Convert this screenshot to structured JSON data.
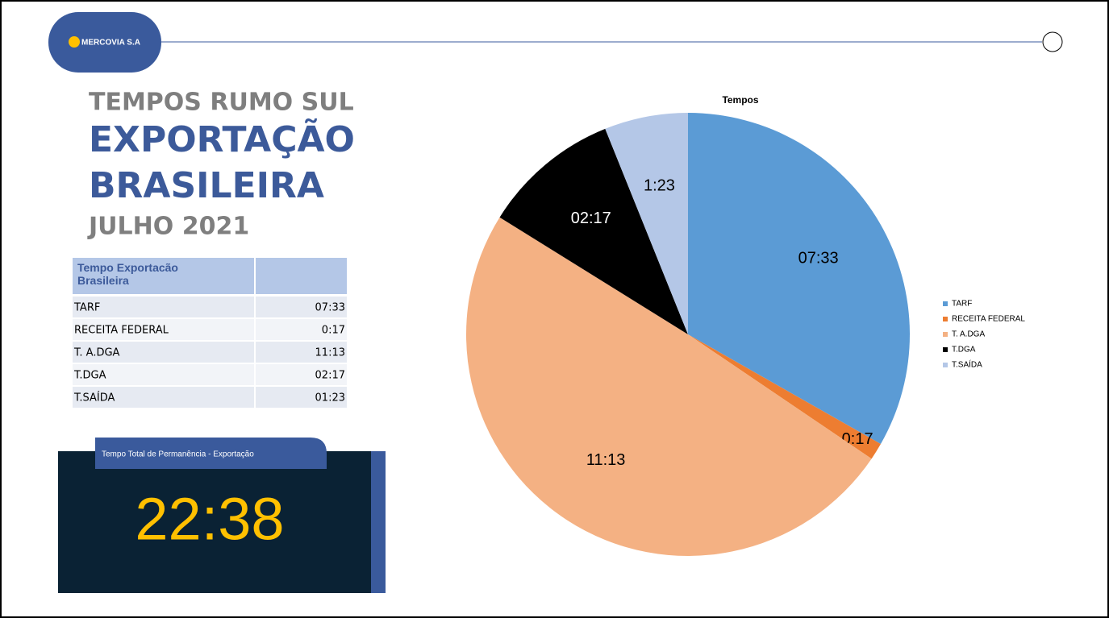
{
  "header": {
    "logo": "MERCOVIA S.A",
    "line1": "TEMPOS RUMO SUL",
    "line2": "EXPORTAÇÃO",
    "line3": "BRASILEIRA",
    "line4": "JULHO 2021"
  },
  "table": {
    "header": [
      "Tempo Exportacão Brasileira",
      ""
    ],
    "rows": [
      [
        "TARF",
        "07:33"
      ],
      [
        "RECEITA FEDERAL",
        "0:17"
      ],
      [
        "T. A.DGA",
        "11:13"
      ],
      [
        "T.DGA",
        "02:17"
      ],
      [
        "T.SAÍDA",
        "01:23"
      ]
    ]
  },
  "kpi": {
    "label": "Tempo Total de Permanência - Exportação",
    "value": "22:38"
  },
  "chart_data": {
    "type": "pie",
    "title": "Tempos",
    "categories": [
      "TARF",
      "RECEITA FEDERAL",
      "T. A.DGA",
      "T.DGA",
      "T.SAÍDA"
    ],
    "values": [
      453,
      17,
      673,
      137,
      83
    ],
    "value_labels": [
      "07:33",
      "0:17",
      "11:13",
      "02:17",
      "1:23"
    ],
    "colors": [
      "#5b9bd5",
      "#ed7d31",
      "#f4b183",
      "#000000",
      "#b4c7e7"
    ],
    "legend": "right"
  }
}
